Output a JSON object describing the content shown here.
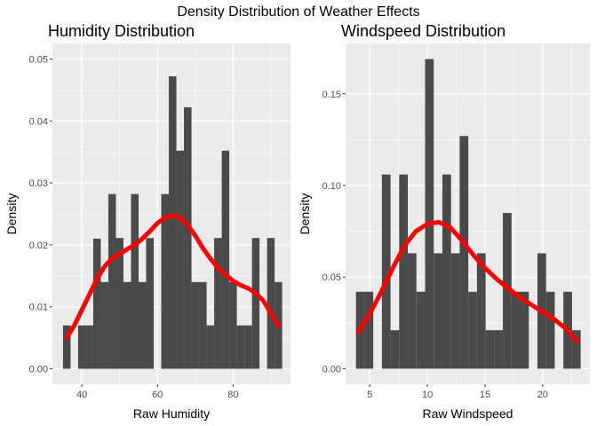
{
  "figure_title": "Density Distribution of Weather Effects",
  "colors": {
    "panel_bg": "#ebebeb",
    "grid": "#ffffff",
    "bar": "#4a4a4a",
    "density_line": "#ff0000"
  },
  "chart_data": [
    {
      "type": "bar",
      "title": "Humidity Distribution",
      "xlabel": "Raw Humidity",
      "ylabel": "Density",
      "xlim": [
        32.2,
        95.2
      ],
      "ylim": [
        -0.0025,
        0.0525
      ],
      "x_ticks": [
        40,
        60,
        80
      ],
      "y_ticks": [
        0.0,
        0.01,
        0.02,
        0.03,
        0.04,
        0.05
      ],
      "y_tick_labels": [
        "0.00",
        "0.01",
        "0.02",
        "0.03",
        "0.04",
        "0.05"
      ],
      "grid": true,
      "bins": [
        {
          "x0": 35.0,
          "x1": 37.0,
          "value": 0.007
        },
        {
          "x0": 37.0,
          "x1": 39.0,
          "value": 0.0
        },
        {
          "x0": 39.0,
          "x1": 41.0,
          "value": 0.007
        },
        {
          "x0": 41.0,
          "x1": 43.0,
          "value": 0.007
        },
        {
          "x0": 43.0,
          "x1": 45.0,
          "value": 0.021
        },
        {
          "x0": 45.0,
          "x1": 47.0,
          "value": 0.014
        },
        {
          "x0": 47.0,
          "x1": 49.0,
          "value": 0.0282
        },
        {
          "x0": 49.0,
          "x1": 51.0,
          "value": 0.0211
        },
        {
          "x0": 51.0,
          "x1": 53.0,
          "value": 0.014
        },
        {
          "x0": 53.0,
          "x1": 55.0,
          "value": 0.0282
        },
        {
          "x0": 55.0,
          "x1": 57.0,
          "value": 0.014
        },
        {
          "x0": 57.0,
          "x1": 59.0,
          "value": 0.0211
        },
        {
          "x0": 59.0,
          "x1": 61.0,
          "value": 0.0
        },
        {
          "x0": 61.0,
          "x1": 63.0,
          "value": 0.0282
        },
        {
          "x0": 63.0,
          "x1": 65.0,
          "value": 0.0472
        },
        {
          "x0": 65.0,
          "x1": 67.0,
          "value": 0.0352
        },
        {
          "x0": 67.0,
          "x1": 69.0,
          "value": 0.0422
        },
        {
          "x0": 69.0,
          "x1": 71.0,
          "value": 0.014
        },
        {
          "x0": 71.0,
          "x1": 73.0,
          "value": 0.014
        },
        {
          "x0": 73.0,
          "x1": 75.0,
          "value": 0.007
        },
        {
          "x0": 75.0,
          "x1": 77.0,
          "value": 0.0211
        },
        {
          "x0": 77.0,
          "x1": 79.0,
          "value": 0.0352
        },
        {
          "x0": 79.0,
          "x1": 81.0,
          "value": 0.014
        },
        {
          "x0": 81.0,
          "x1": 83.0,
          "value": 0.007
        },
        {
          "x0": 83.0,
          "x1": 85.0,
          "value": 0.007
        },
        {
          "x0": 85.0,
          "x1": 87.0,
          "value": 0.0211
        },
        {
          "x0": 87.0,
          "x1": 89.0,
          "value": 0.0
        },
        {
          "x0": 89.0,
          "x1": 91.0,
          "value": 0.0211
        },
        {
          "x0": 91.0,
          "x1": 93.0,
          "value": 0.014
        }
      ],
      "density_curve": {
        "x": [
          36,
          38,
          40,
          42,
          44,
          46,
          48,
          50,
          52,
          54,
          56,
          58,
          60,
          62,
          64,
          66,
          68,
          70,
          72,
          74,
          76,
          78,
          80,
          82,
          84,
          86,
          88,
          90,
          92
        ],
        "y": [
          0.005,
          0.007,
          0.0095,
          0.012,
          0.0145,
          0.0165,
          0.0178,
          0.0185,
          0.0193,
          0.02,
          0.021,
          0.0222,
          0.0235,
          0.0244,
          0.0248,
          0.0244,
          0.0232,
          0.0215,
          0.0195,
          0.0178,
          0.0163,
          0.0152,
          0.0142,
          0.0135,
          0.013,
          0.0122,
          0.011,
          0.009,
          0.007
        ]
      }
    },
    {
      "type": "bar",
      "title": "Windspeed Distribution",
      "xlabel": "Raw Windspeed",
      "ylabel": "Density",
      "xlim": [
        2.9,
        24.1
      ],
      "ylim": [
        -0.0085,
        0.1775
      ],
      "x_ticks": [
        5,
        10,
        15,
        20
      ],
      "y_ticks": [
        0.0,
        0.05,
        0.1,
        0.15
      ],
      "y_tick_labels": [
        "0.00",
        "0.05",
        "0.10",
        "0.15"
      ],
      "grid": true,
      "bins": [
        {
          "x0": 3.8,
          "x1": 4.55,
          "value": 0.042
        },
        {
          "x0": 4.55,
          "x1": 5.3,
          "value": 0.042
        },
        {
          "x0": 5.3,
          "x1": 6.05,
          "value": 0.0
        },
        {
          "x0": 6.05,
          "x1": 6.8,
          "value": 0.106
        },
        {
          "x0": 6.8,
          "x1": 7.55,
          "value": 0.021
        },
        {
          "x0": 7.55,
          "x1": 8.3,
          "value": 0.106
        },
        {
          "x0": 8.3,
          "x1": 9.05,
          "value": 0.063
        },
        {
          "x0": 9.05,
          "x1": 9.8,
          "value": 0.042
        },
        {
          "x0": 9.8,
          "x1": 10.55,
          "value": 0.169
        },
        {
          "x0": 10.55,
          "x1": 11.3,
          "value": 0.063
        },
        {
          "x0": 11.3,
          "x1": 12.05,
          "value": 0.106
        },
        {
          "x0": 12.05,
          "x1": 12.8,
          "value": 0.063
        },
        {
          "x0": 12.8,
          "x1": 13.55,
          "value": 0.127
        },
        {
          "x0": 13.55,
          "x1": 14.3,
          "value": 0.042
        },
        {
          "x0": 14.3,
          "x1": 15.05,
          "value": 0.063
        },
        {
          "x0": 15.05,
          "x1": 15.8,
          "value": 0.021
        },
        {
          "x0": 15.8,
          "x1": 16.55,
          "value": 0.021
        },
        {
          "x0": 16.55,
          "x1": 17.3,
          "value": 0.085
        },
        {
          "x0": 17.3,
          "x1": 18.05,
          "value": 0.042
        },
        {
          "x0": 18.05,
          "x1": 18.8,
          "value": 0.042
        },
        {
          "x0": 18.8,
          "x1": 19.55,
          "value": 0.0
        },
        {
          "x0": 19.55,
          "x1": 20.3,
          "value": 0.063
        },
        {
          "x0": 20.3,
          "x1": 21.05,
          "value": 0.042
        },
        {
          "x0": 21.05,
          "x1": 21.8,
          "value": 0.0
        },
        {
          "x0": 21.8,
          "x1": 22.55,
          "value": 0.042
        },
        {
          "x0": 22.55,
          "x1": 23.3,
          "value": 0.021
        }
      ],
      "density_curve": {
        "x": [
          4,
          5,
          6,
          7,
          8,
          9,
          10,
          11,
          12,
          13,
          14,
          15,
          16,
          17,
          18,
          19,
          20,
          21,
          22,
          23
        ],
        "y": [
          0.02,
          0.03,
          0.042,
          0.055,
          0.067,
          0.075,
          0.079,
          0.08,
          0.077,
          0.07,
          0.062,
          0.055,
          0.049,
          0.044,
          0.039,
          0.035,
          0.031,
          0.027,
          0.022,
          0.015
        ]
      }
    }
  ]
}
